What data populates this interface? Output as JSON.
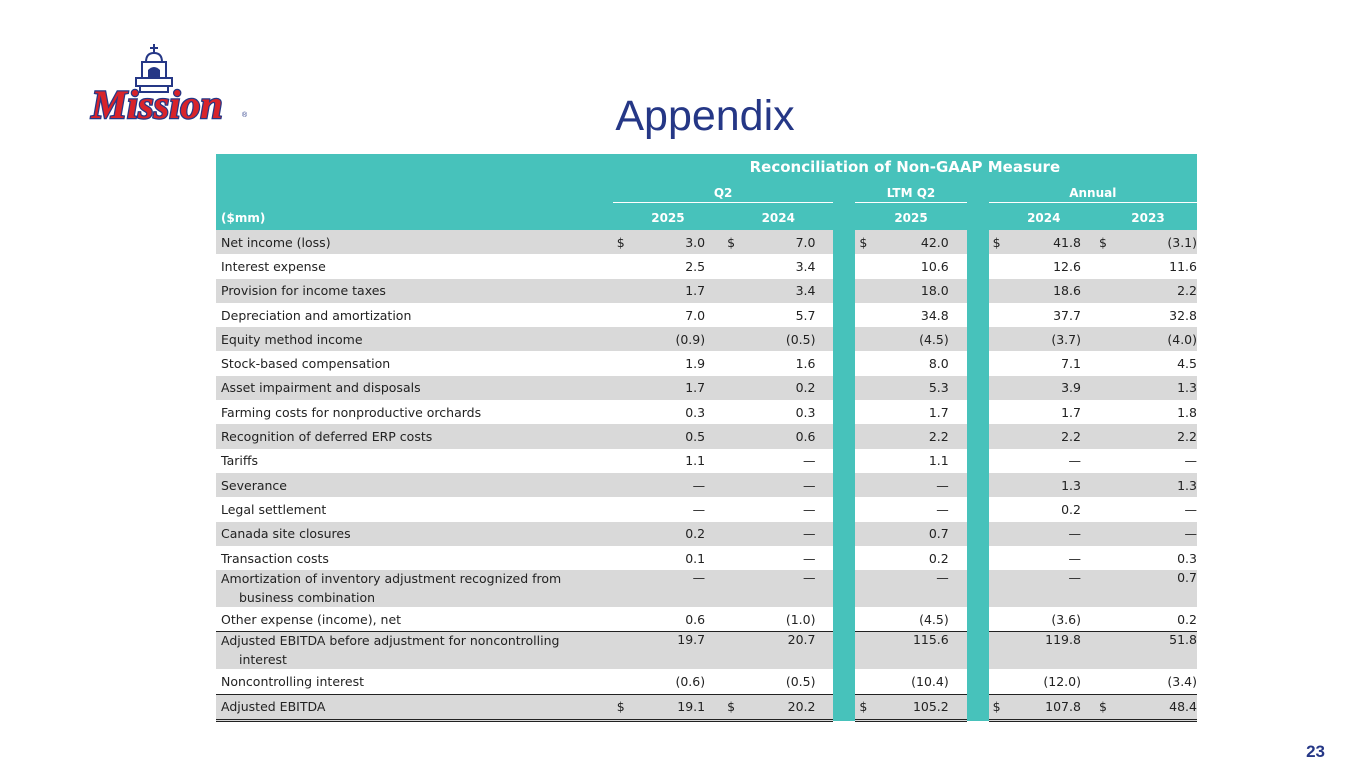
{
  "header": {
    "logo_text": "Mission",
    "title": "Appendix"
  },
  "page_number": "23",
  "table": {
    "title": "Reconciliation of Non-GAAP Measure",
    "groups": {
      "q2": "Q2",
      "ltm": "LTM Q2",
      "annual": "Annual"
    },
    "unit_label": "($mm)",
    "years": {
      "q2_2025": "2025",
      "q2_2024": "2024",
      "ltm_2025": "2025",
      "annual_2024": "2024",
      "annual_2023": "2023"
    },
    "currency": "$",
    "rows": [
      {
        "label": "Net income (loss)",
        "lines": [
          "Net income (loss)",
          ""
        ],
        "values": [
          "3.0",
          "7.0",
          "42.0",
          "41.8",
          "(3.1)"
        ]
      },
      {
        "label": "Interest expense",
        "lines": [
          "Interest expense",
          ""
        ],
        "values": [
          "2.5",
          "3.4",
          "10.6",
          "12.6",
          "11.6"
        ]
      },
      {
        "label": "Provision for income taxes",
        "lines": [
          "Provision for income taxes",
          ""
        ],
        "values": [
          "1.7",
          "3.4",
          "18.0",
          "18.6",
          "2.2"
        ]
      },
      {
        "label": "Depreciation and amortization",
        "lines": [
          "Depreciation and amortization",
          ""
        ],
        "values": [
          "7.0",
          "5.7",
          "34.8",
          "37.7",
          "32.8"
        ]
      },
      {
        "label": "Equity method income",
        "lines": [
          "Equity method income",
          ""
        ],
        "values": [
          "(0.9)",
          "(0.5)",
          "(4.5)",
          "(3.7)",
          "(4.0)"
        ]
      },
      {
        "label": "Stock-based compensation",
        "lines": [
          "Stock-based compensation",
          ""
        ],
        "values": [
          "1.9",
          "1.6",
          "8.0",
          "7.1",
          "4.5"
        ]
      },
      {
        "label": "Asset impairment and disposals",
        "lines": [
          "Asset impairment and disposals",
          ""
        ],
        "values": [
          "1.7",
          "0.2",
          "5.3",
          "3.9",
          "1.3"
        ]
      },
      {
        "label": "Farming costs for nonproductive orchards",
        "lines": [
          "Farming costs for nonproductive orchards",
          ""
        ],
        "values": [
          "0.3",
          "0.3",
          "1.7",
          "1.7",
          "1.8"
        ]
      },
      {
        "label": "Recognition of deferred ERP costs",
        "lines": [
          "Recognition of deferred ERP costs",
          ""
        ],
        "values": [
          "0.5",
          "0.6",
          "2.2",
          "2.2",
          "2.2"
        ]
      },
      {
        "label": "Tariffs",
        "lines": [
          "Tariffs",
          ""
        ],
        "values": [
          "1.1",
          "—",
          "1.1",
          "—",
          "—"
        ]
      },
      {
        "label": "Severance",
        "lines": [
          "Severance",
          ""
        ],
        "values": [
          "—",
          "—",
          "—",
          "1.3",
          "1.3"
        ]
      },
      {
        "label": "Legal settlement",
        "lines": [
          "Legal settlement",
          ""
        ],
        "values": [
          "—",
          "—",
          "—",
          "0.2",
          "—"
        ]
      },
      {
        "label": "Canada site closures",
        "lines": [
          "Canada site closures",
          ""
        ],
        "values": [
          "0.2",
          "—",
          "0.7",
          "—",
          "—"
        ]
      },
      {
        "label": "Transaction costs",
        "lines": [
          "Transaction costs",
          ""
        ],
        "values": [
          "0.1",
          "—",
          "0.2",
          "—",
          "0.3"
        ]
      },
      {
        "label": "Amortization of inventory adjustment recognized from business combination",
        "lines": [
          "Amortization of inventory adjustment recognized from",
          "business combination"
        ],
        "values": [
          "—",
          "—",
          "—",
          "—",
          "0.7"
        ]
      },
      {
        "label": "Other expense (income), net",
        "lines": [
          "Other expense (income), net",
          ""
        ],
        "values": [
          "0.6",
          "(1.0)",
          "(4.5)",
          "(3.6)",
          "0.2"
        ]
      },
      {
        "label": "Adjusted EBITDA before adjustment for noncontrolling interest",
        "lines": [
          "Adjusted EBITDA before adjustment for noncontrolling",
          "interest"
        ],
        "values": [
          "19.7",
          "20.7",
          "115.6",
          "119.8",
          "51.8"
        ]
      },
      {
        "label": "Noncontrolling interest",
        "lines": [
          "Noncontrolling interest",
          ""
        ],
        "values": [
          "(0.6)",
          "(0.5)",
          "(10.4)",
          "(12.0)",
          "(3.4)"
        ]
      },
      {
        "label": "Adjusted EBITDA",
        "lines": [
          "Adjusted EBITDA",
          ""
        ],
        "values": [
          "19.1",
          "20.2",
          "105.2",
          "107.8",
          "48.4"
        ]
      }
    ]
  }
}
